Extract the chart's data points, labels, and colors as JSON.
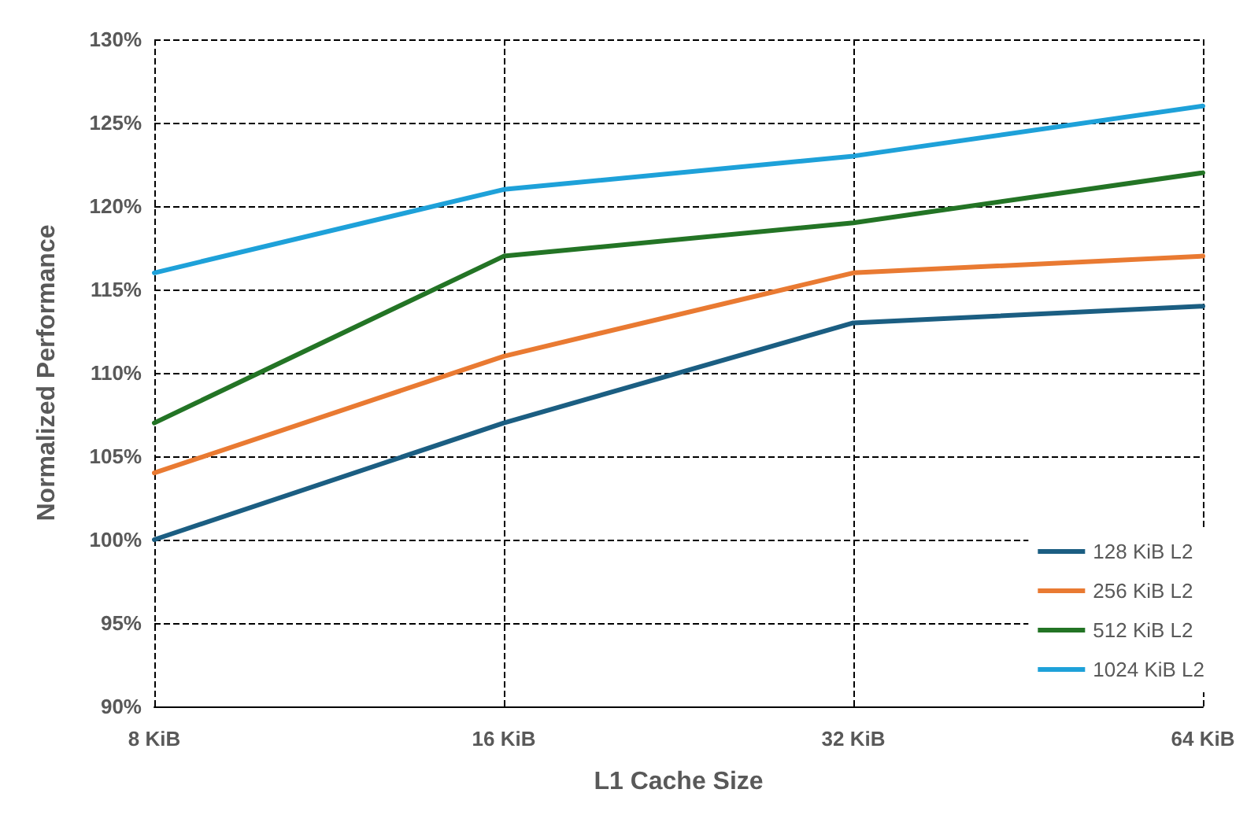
{
  "chart_data": {
    "type": "line",
    "xlabel": "L1 Cache Size",
    "ylabel": "Normalized Performance",
    "categories": [
      "8 KiB",
      "16 KiB",
      "32 KiB",
      "64 KiB"
    ],
    "series": [
      {
        "name": "128 KiB L2",
        "color": "#1b5e82",
        "values": [
          100,
          107,
          113,
          114
        ]
      },
      {
        "name": "256 KiB L2",
        "color": "#e97a32",
        "values": [
          104,
          111,
          116,
          117
        ]
      },
      {
        "name": "512 KiB L2",
        "color": "#237425",
        "values": [
          107,
          117,
          119,
          122
        ]
      },
      {
        "name": "1024 KiB L2",
        "color": "#1ea1d9",
        "values": [
          116,
          121,
          123,
          126
        ]
      }
    ],
    "ylim": [
      90,
      130
    ],
    "yticks": [
      {
        "value": 90,
        "label": "90%"
      },
      {
        "value": 95,
        "label": "95%"
      },
      {
        "value": 100,
        "label": "100%"
      },
      {
        "value": 105,
        "label": "105%"
      },
      {
        "value": 110,
        "label": "110%"
      },
      {
        "value": 115,
        "label": "115%"
      },
      {
        "value": 120,
        "label": "120%"
      },
      {
        "value": 125,
        "label": "125%"
      },
      {
        "value": 130,
        "label": "130%"
      }
    ],
    "grid": true,
    "legend": "bottom right",
    "marker": "none",
    "line_style": "solid"
  }
}
